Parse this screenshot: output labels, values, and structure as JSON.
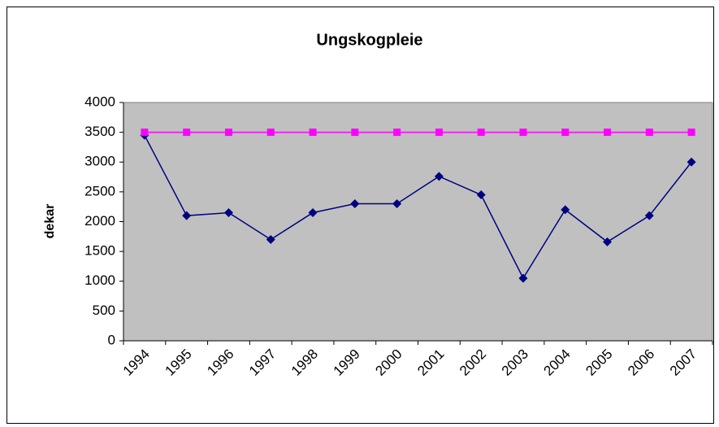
{
  "chart_data": {
    "type": "line",
    "title": "Ungskogpleie",
    "y_label": "dekar",
    "categories": [
      "1994",
      "1995",
      "1996",
      "1997",
      "1998",
      "1999",
      "2000",
      "2001",
      "2002",
      "2003",
      "2004",
      "2005",
      "2006",
      "2007"
    ],
    "series": [
      {
        "color": "#000080",
        "marker": "diamond",
        "values": [
          3450,
          2100,
          2150,
          1700,
          2150,
          2300,
          2300,
          2760,
          2450,
          1050,
          2200,
          1660,
          2100,
          3000
        ]
      },
      {
        "color": "#ff00ff",
        "marker": "square",
        "values": [
          3500,
          3500,
          3500,
          3500,
          3500,
          3500,
          3500,
          3500,
          3500,
          3500,
          3500,
          3500,
          3500,
          3500
        ]
      }
    ],
    "ylim": [
      0,
      4000
    ],
    "yticks": [
      0,
      500,
      1000,
      1500,
      2000,
      2500,
      3000,
      3500,
      4000
    ],
    "plot_background": "#c0c0c0"
  }
}
